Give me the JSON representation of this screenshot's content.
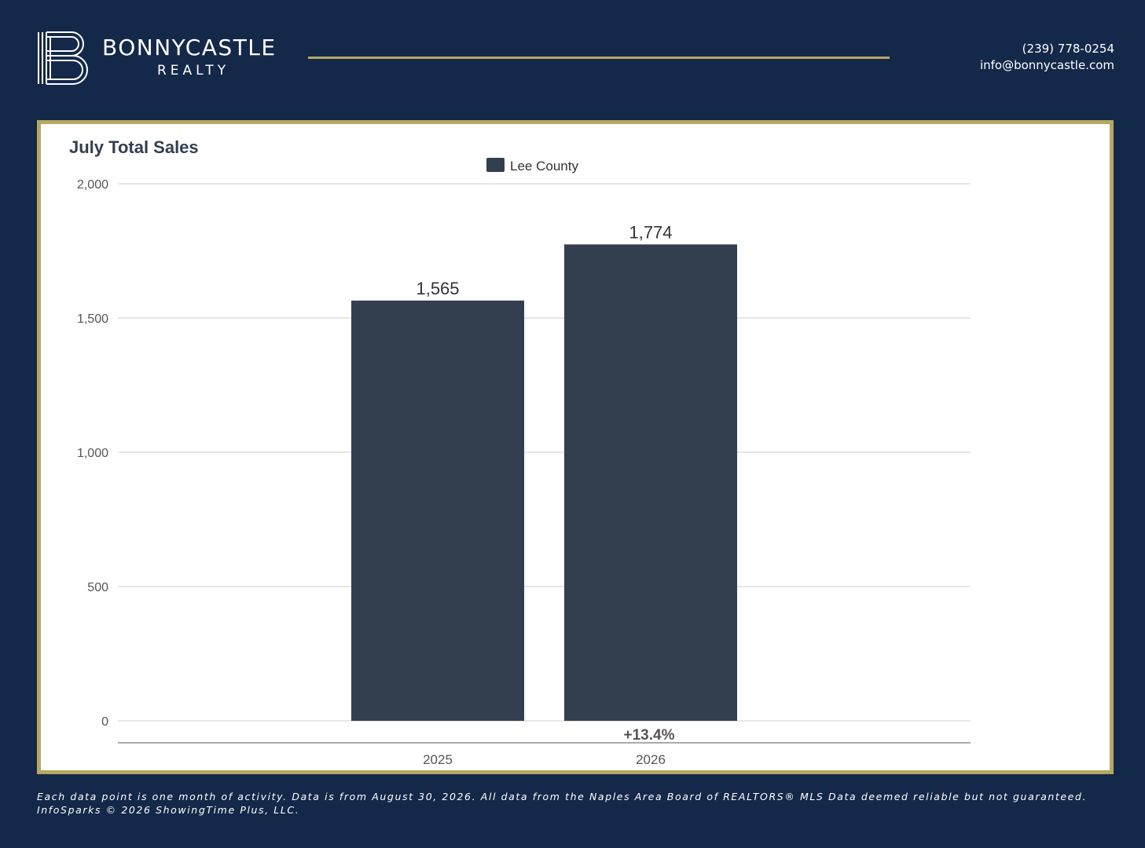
{
  "brand": {
    "name": "BONNYCASTLE",
    "sub": "REALTY",
    "phone": "(239) 778-0254",
    "email": "info@bonnycastle.com"
  },
  "colors": {
    "background": "#14284a",
    "gold": "#b5a862",
    "bar": "#333f4f",
    "grid": "#dddddd"
  },
  "chart_data": {
    "type": "bar",
    "title": "July Total Sales",
    "categories": [
      "2025",
      "2026"
    ],
    "series": [
      {
        "name": "Lee County",
        "values": [
          1565,
          1774
        ],
        "labels": [
          "1,565",
          "1,774"
        ]
      }
    ],
    "yticks": [
      0,
      500,
      1000,
      1500,
      2000
    ],
    "ytick_labels": [
      "0",
      "500",
      "1,000",
      "1,500",
      "2,000"
    ],
    "ylim": [
      0,
      2000
    ],
    "change_label": "+13.4%",
    "legend_position": "top-center",
    "grid": true
  },
  "footer": {
    "line1": "Each data point is one month of activity. Data is from August 30, 2026. All data from the Naples Area Board of REALTORS® MLS  Data deemed reliable but not guaranteed.",
    "line2": "InfoSparks © 2026 ShowingTime Plus, LLC."
  }
}
